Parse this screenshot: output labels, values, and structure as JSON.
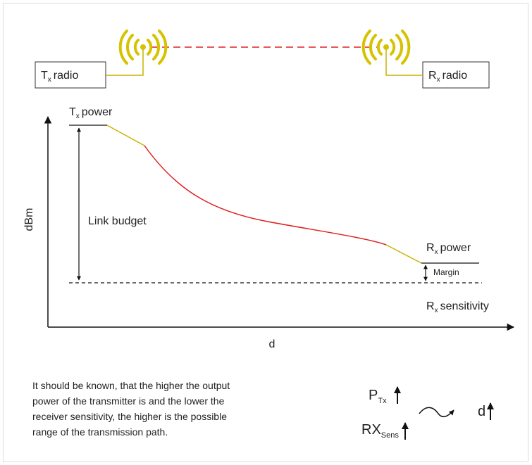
{
  "tx_radio": {
    "main": "T",
    "sub": "x",
    "rest": "radio"
  },
  "rx_radio": {
    "main": "R",
    "sub": "x",
    "rest": "radio"
  },
  "tx_power": {
    "main": "T",
    "sub": "x",
    "rest": "power"
  },
  "rx_power": {
    "main": "R",
    "sub": "x",
    "rest": "power"
  },
  "rx_sensitivity": {
    "main": "R",
    "sub": "x",
    "rest": "sensitivity"
  },
  "y_axis_label": "dBm",
  "x_axis_label": "d",
  "link_budget": "Link budget",
  "margin": "Margin",
  "caption": [
    "It should be known, that the higher the output",
    "power of the transmitter is and the lower the",
    "receiver sensitivity, the higher is the possible",
    "range of the transmission path."
  ],
  "formula": {
    "p": "P",
    "p_sub": "Tx",
    "rx": "RX",
    "rx_sub": "Sens",
    "d": "d"
  }
}
